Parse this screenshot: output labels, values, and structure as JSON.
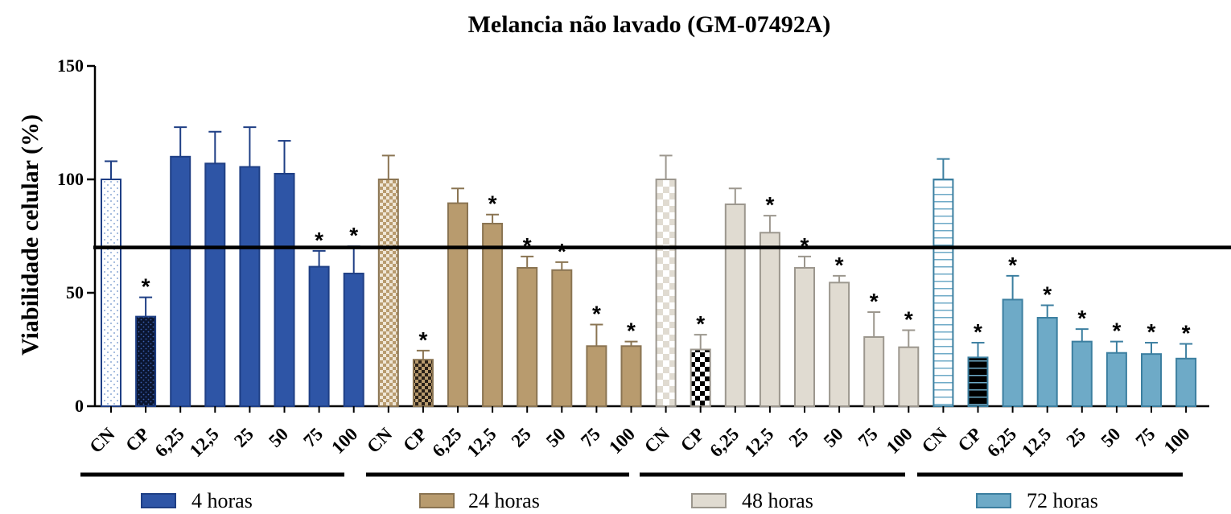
{
  "chart_data": {
    "type": "bar",
    "title": "Melancia não lavado (GM-07492A)",
    "ylabel": "Viabilidade celular  (%)",
    "xlabel": "",
    "ylim": [
      0,
      150
    ],
    "yticks": [
      0,
      50,
      100,
      150
    ],
    "reference_line": 70,
    "significance_marker": "*",
    "categories": [
      "CN",
      "CP",
      "6,25",
      "12,5",
      "25",
      "50",
      "75",
      "100"
    ],
    "groups": [
      {
        "name": "4 horas",
        "color": "#2e55a6",
        "values": [
          100,
          39.5,
          110,
          107,
          105.5,
          102.5,
          61.5,
          58.5
        ],
        "errors": [
          8,
          8.5,
          13,
          14,
          17.5,
          14.5,
          7,
          12
        ],
        "significant": [
          false,
          true,
          false,
          false,
          false,
          false,
          true,
          true
        ]
      },
      {
        "name": "24 horas",
        "color": "#b89b6e",
        "values": [
          100,
          20.5,
          89.5,
          80.5,
          61,
          60,
          26.5,
          26.5
        ],
        "errors": [
          10.5,
          4,
          6.5,
          4,
          5,
          3.5,
          9.5,
          2
        ],
        "significant": [
          false,
          true,
          false,
          true,
          true,
          true,
          true,
          true
        ]
      },
      {
        "name": "48 horas",
        "color": "#e0dbd1",
        "values": [
          100,
          25,
          89,
          76.5,
          61,
          54.5,
          30.5,
          26
        ],
        "errors": [
          10.5,
          6.5,
          7,
          7.5,
          5,
          3,
          11,
          7.5
        ],
        "significant": [
          false,
          true,
          false,
          true,
          true,
          true,
          true,
          true
        ]
      },
      {
        "name": "72 horas",
        "color": "#6eaac7",
        "values": [
          100,
          21.5,
          47,
          39,
          28.5,
          23.5,
          23,
          21
        ],
        "errors": [
          9,
          6.5,
          10.5,
          5.5,
          5.5,
          5,
          5,
          6.5
        ],
        "significant": [
          false,
          true,
          true,
          true,
          true,
          true,
          true,
          true
        ]
      }
    ],
    "legend": [
      "4 horas",
      "24 horas",
      "48 horas",
      "72 horas"
    ],
    "legend_position": "bottom"
  }
}
